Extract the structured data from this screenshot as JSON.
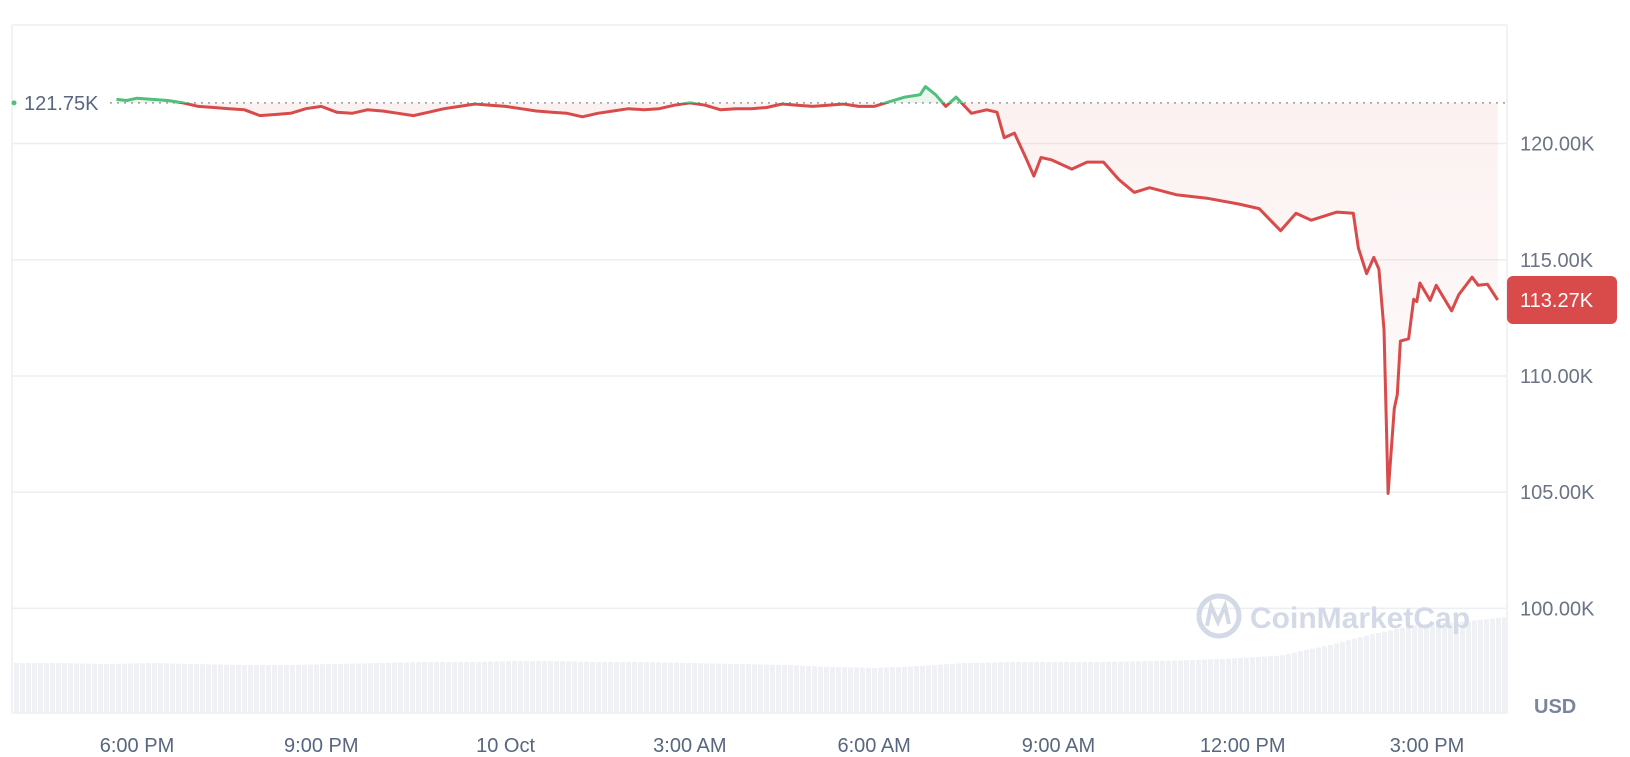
{
  "chart_data": {
    "type": "line",
    "title": "",
    "xlabel": "",
    "ylabel": "",
    "unit_label": "USD",
    "watermark": "CoinMarketCap",
    "ylim": [
      95.5,
      125.1
    ],
    "y_ticks": [
      "120.00K",
      "115.00K",
      "110.00K",
      "105.00K",
      "100.00K"
    ],
    "y_tick_values": [
      120,
      115,
      110,
      105,
      100
    ],
    "x_ticks": [
      "6:00 PM",
      "9:00 PM",
      "10 Oct",
      "3:00 AM",
      "6:00 AM",
      "9:00 AM",
      "12:00 PM",
      "3:00 PM"
    ],
    "x_tick_times": [
      "18:00",
      "21:00",
      "00:00",
      "03:00",
      "06:00",
      "09:00",
      "12:00",
      "15:00"
    ],
    "grid": true,
    "baseline": {
      "label": "121.75K",
      "value": 121.75
    },
    "current_price": {
      "label": "113.27K",
      "value": 113.27
    },
    "colors": {
      "up": "#4fbf7b",
      "down": "#d94a4a",
      "tag": "#d94a4a",
      "grid": "#eceef2",
      "volume": "#eff1f5"
    },
    "series": [
      {
        "price_unit": "K USD",
        "points": [
          [
            "17:40",
            121.9
          ],
          [
            "17:50",
            121.85
          ],
          [
            "18:00",
            121.95
          ],
          [
            "18:15",
            121.9
          ],
          [
            "18:30",
            121.85
          ],
          [
            "18:45",
            121.75
          ],
          [
            "19:00",
            121.6
          ],
          [
            "19:15",
            121.55
          ],
          [
            "19:30",
            121.5
          ],
          [
            "19:45",
            121.45
          ],
          [
            "20:00",
            121.2
          ],
          [
            "20:15",
            121.25
          ],
          [
            "20:30",
            121.3
          ],
          [
            "20:45",
            121.5
          ],
          [
            "21:00",
            121.6
          ],
          [
            "21:15",
            121.35
          ],
          [
            "21:30",
            121.3
          ],
          [
            "21:45",
            121.45
          ],
          [
            "22:00",
            121.4
          ],
          [
            "22:15",
            121.3
          ],
          [
            "22:30",
            121.2
          ],
          [
            "22:45",
            121.35
          ],
          [
            "23:00",
            121.5
          ],
          [
            "23:15",
            121.6
          ],
          [
            "23:30",
            121.7
          ],
          [
            "23:45",
            121.65
          ],
          [
            "00:00",
            121.6
          ],
          [
            "00:15",
            121.5
          ],
          [
            "00:30",
            121.4
          ],
          [
            "00:45",
            121.35
          ],
          [
            "01:00",
            121.3
          ],
          [
            "01:15",
            121.15
          ],
          [
            "01:30",
            121.3
          ],
          [
            "01:45",
            121.4
          ],
          [
            "02:00",
            121.5
          ],
          [
            "02:15",
            121.45
          ],
          [
            "02:30",
            121.5
          ],
          [
            "02:45",
            121.65
          ],
          [
            "03:00",
            121.75
          ],
          [
            "03:15",
            121.65
          ],
          [
            "03:30",
            121.45
          ],
          [
            "03:45",
            121.5
          ],
          [
            "04:00",
            121.5
          ],
          [
            "04:15",
            121.55
          ],
          [
            "04:30",
            121.7
          ],
          [
            "04:45",
            121.65
          ],
          [
            "05:00",
            121.6
          ],
          [
            "05:15",
            121.65
          ],
          [
            "05:30",
            121.7
          ],
          [
            "05:45",
            121.6
          ],
          [
            "06:00",
            121.6
          ],
          [
            "06:15",
            121.8
          ],
          [
            "06:30",
            122.0
          ],
          [
            "06:45",
            122.1
          ],
          [
            "06:50",
            122.45
          ],
          [
            "07:00",
            122.1
          ],
          [
            "07:10",
            121.6
          ],
          [
            "07:20",
            122.0
          ],
          [
            "07:35",
            121.3
          ],
          [
            "07:50",
            121.45
          ],
          [
            "08:00",
            121.35
          ],
          [
            "08:07",
            120.25
          ],
          [
            "08:17",
            120.45
          ],
          [
            "08:28",
            119.4
          ],
          [
            "08:36",
            118.6
          ],
          [
            "08:43",
            119.4
          ],
          [
            "08:53",
            119.3
          ],
          [
            "09:13",
            118.9
          ],
          [
            "09:28",
            119.2
          ],
          [
            "09:44",
            119.2
          ],
          [
            "09:59",
            118.45
          ],
          [
            "10:14",
            117.9
          ],
          [
            "10:29",
            118.1
          ],
          [
            "10:55",
            117.8
          ],
          [
            "11:25",
            117.65
          ],
          [
            "11:56",
            117.4
          ],
          [
            "12:16",
            117.2
          ],
          [
            "12:37",
            116.25
          ],
          [
            "12:52",
            117.0
          ],
          [
            "13:07",
            116.7
          ],
          [
            "13:32",
            117.05
          ],
          [
            "13:48",
            117.0
          ],
          [
            "13:53",
            115.5
          ],
          [
            "14:01",
            114.4
          ],
          [
            "14:08",
            115.1
          ],
          [
            "14:13",
            114.6
          ],
          [
            "14:18",
            112.0
          ],
          [
            "14:22",
            104.95
          ],
          [
            "14:28",
            108.6
          ],
          [
            "14:31",
            109.2
          ],
          [
            "14:34",
            111.5
          ],
          [
            "14:42",
            111.6
          ],
          [
            "14:47",
            113.3
          ],
          [
            "14:50",
            113.2
          ],
          [
            "14:53",
            114.0
          ],
          [
            "15:03",
            113.25
          ],
          [
            "15:09",
            113.9
          ],
          [
            "15:24",
            112.8
          ],
          [
            "15:31",
            113.5
          ],
          [
            "15:44",
            114.25
          ],
          [
            "15:50",
            113.9
          ],
          [
            "15:59",
            113.95
          ],
          [
            "16:09",
            113.27
          ]
        ]
      }
    ],
    "volume_relative": [
      0.52,
      0.52,
      0.51,
      0.52,
      0.51,
      0.5,
      0.5,
      0.51,
      0.52,
      0.53,
      0.53,
      0.54,
      0.54,
      0.53,
      0.53,
      0.52,
      0.51,
      0.5,
      0.48,
      0.47,
      0.49,
      0.52,
      0.53,
      0.53,
      0.53,
      0.54,
      0.55,
      0.57,
      0.6,
      0.7,
      0.82,
      0.92,
      0.95,
      1.0
    ]
  }
}
